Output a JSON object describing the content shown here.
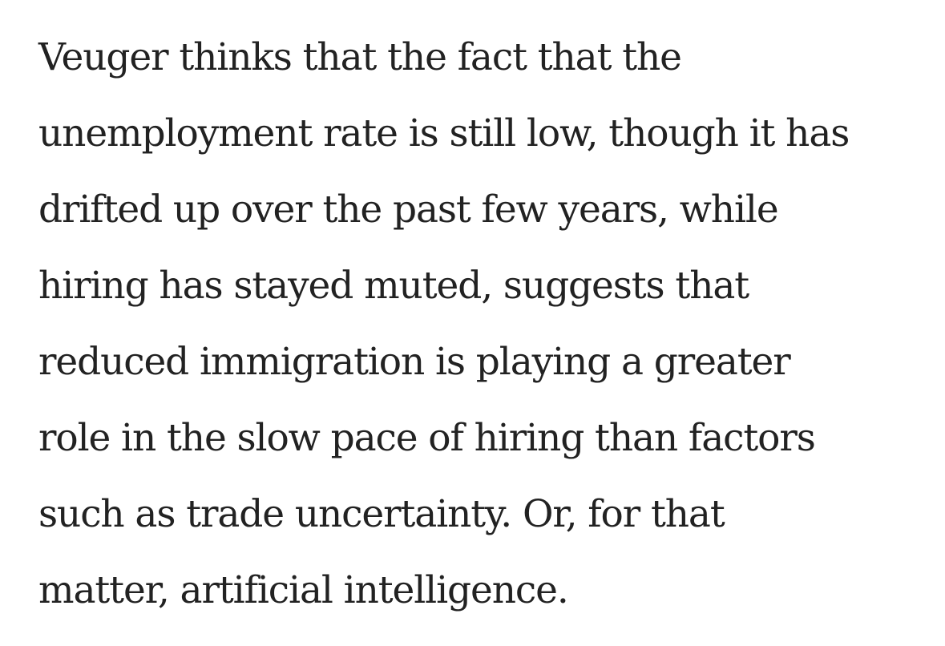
{
  "article": {
    "paragraph_lines": [
      "Veuger thinks that the fact that the",
      "unemployment rate is still low, though it has",
      "drifted up over the past few years, while",
      "hiring has stayed muted, suggests that",
      "reduced immigration is playing a greater",
      "role in the slow pace of hiring than factors",
      "such as trade uncertainty. Or, for that",
      "matter, artificial intelligence."
    ]
  }
}
